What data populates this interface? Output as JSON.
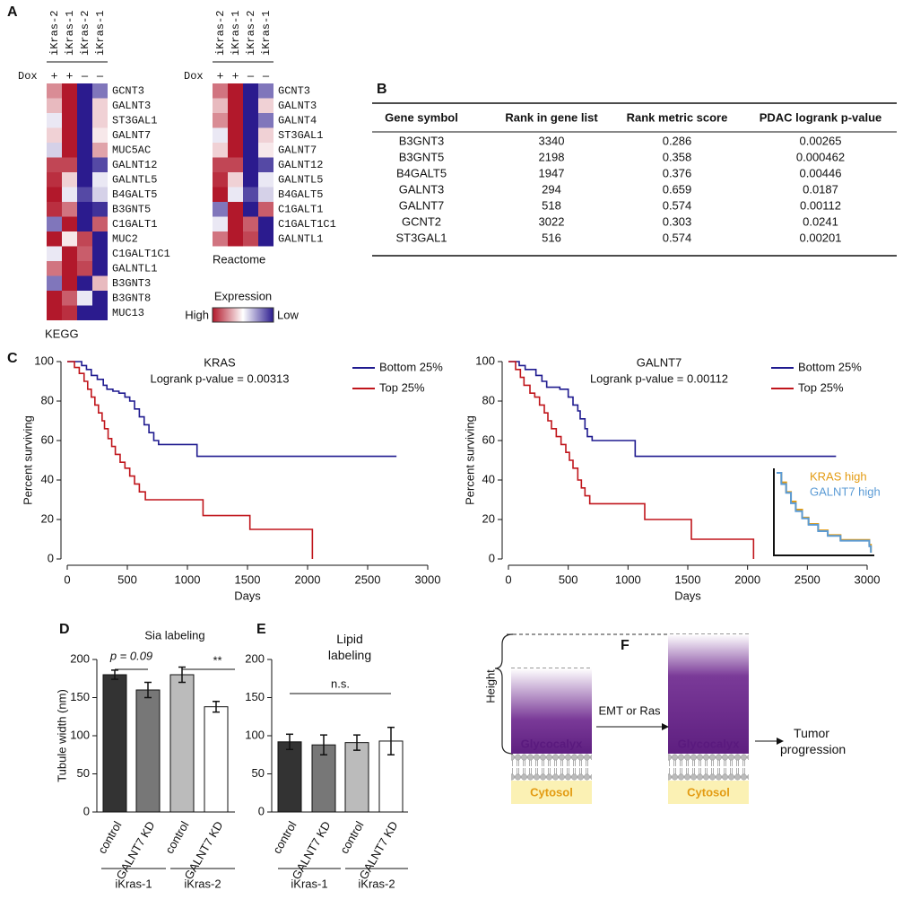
{
  "panel_labels": [
    "A",
    "B",
    "C",
    "D",
    "E",
    "F"
  ],
  "heatmap": {
    "conditions": [
      "iKras-2",
      "iKras-1",
      "iKras-2",
      "iKras-1"
    ],
    "dox_label": "Dox",
    "dox": [
      "+",
      "+",
      "–",
      "–"
    ],
    "range": [
      -1,
      1
    ],
    "colors": {
      "high": "#b2182b",
      "mid": "#ffffff",
      "low": "#2b1b8e"
    },
    "legend": {
      "title": "Expression",
      "high": "High",
      "low": "Low"
    },
    "maps": [
      {
        "name": "KEGG",
        "genes": [
          "GCNT3",
          "GALNT3",
          "ST3GAL1",
          "GALNT7",
          "MUC5AC",
          "GALNT12",
          "GALNTL5",
          "B4GALT5",
          "B3GNT5",
          "C1GALT1",
          "MUC2",
          "C1GALT1C1",
          "GALNTL1",
          "B3GNT3",
          "B3GNT8",
          "MUC13"
        ],
        "values": [
          [
            0.5,
            1,
            -1,
            -0.6
          ],
          [
            0.3,
            1,
            -1,
            0.2
          ],
          [
            -0.1,
            1,
            -1,
            0.2
          ],
          [
            0.2,
            1,
            -1,
            0.1
          ],
          [
            -0.2,
            1,
            -1,
            0.4
          ],
          [
            0.8,
            0.8,
            -1,
            -0.8
          ],
          [
            0.9,
            0.2,
            -1,
            -0.1
          ],
          [
            1,
            -0.1,
            -0.8,
            -0.2
          ],
          [
            0.9,
            0.6,
            -1,
            -0.9
          ],
          [
            -0.6,
            1,
            -1,
            0.7
          ],
          [
            1,
            0.1,
            0.8,
            -1
          ],
          [
            -0.1,
            1,
            0.7,
            -1
          ],
          [
            0.6,
            1,
            0.8,
            -1
          ],
          [
            -0.6,
            1,
            -1,
            0.3
          ],
          [
            1,
            0.7,
            -0.1,
            -1
          ],
          [
            1,
            0.9,
            -1,
            -1
          ]
        ]
      },
      {
        "name": "Reactome",
        "genes": [
          "GCNT3",
          "GALNT3",
          "GALNT4",
          "ST3GAL1",
          "GALNT7",
          "GALNT12",
          "GALNTL5",
          "B4GALT5",
          "C1GALT1",
          "C1GALT1C1",
          "GALNTL1"
        ],
        "values": [
          [
            0.6,
            1,
            -1,
            -0.6
          ],
          [
            0.3,
            1,
            -1,
            0.2
          ],
          [
            0.5,
            1,
            -1,
            -0.6
          ],
          [
            -0.1,
            1,
            -1,
            0.2
          ],
          [
            0.2,
            1,
            -1,
            0.1
          ],
          [
            0.8,
            0.8,
            -1,
            -0.8
          ],
          [
            0.9,
            0.2,
            -1,
            -0.1
          ],
          [
            1,
            -0.1,
            -0.8,
            -0.2
          ],
          [
            -0.6,
            1,
            -1,
            0.7
          ],
          [
            -0.1,
            1,
            0.7,
            -1
          ],
          [
            0.6,
            1,
            0.8,
            -1
          ]
        ]
      }
    ]
  },
  "table": {
    "columns": [
      "Gene symbol",
      "Rank in gene list",
      "Rank metric score",
      "PDAC logrank p-value"
    ],
    "rows": [
      [
        "B3GNT3",
        3340,
        0.286,
        0.00265
      ],
      [
        "B3GNT5",
        2198,
        0.358,
        0.000462
      ],
      [
        "B4GALT5",
        1947,
        0.376,
        0.00446
      ],
      [
        "GALNT3",
        294,
        0.659,
        0.0187
      ],
      [
        "GALNT7",
        518,
        0.574,
        0.00112
      ],
      [
        "GCNT2",
        3022,
        0.303,
        0.0241
      ],
      [
        "ST3GAL1",
        516,
        0.574,
        0.00201
      ]
    ]
  },
  "chart_data": [
    {
      "type": "step",
      "title": "KRAS",
      "subtitle": "Logrank p-value = 0.00313",
      "x_label": "Days",
      "y_label": "Percent surviving",
      "xlim": [
        0,
        3000
      ],
      "xticks": [
        0,
        500,
        1000,
        1500,
        2000,
        2500,
        3000
      ],
      "ylim": [
        0,
        100
      ],
      "yticks": [
        0,
        20,
        40,
        60,
        80,
        100
      ],
      "legend": "upper right",
      "series": [
        {
          "name": "Bottom 25%",
          "color": "#1f1a8f",
          "x": [
            0,
            120,
            160,
            200,
            250,
            300,
            330,
            380,
            430,
            480,
            520,
            560,
            600,
            640,
            680,
            720,
            760,
            1080,
            2740
          ],
          "values": [
            100,
            98,
            96,
            93,
            91,
            88,
            86,
            85,
            84,
            82,
            80,
            76,
            72,
            68,
            64,
            60,
            58,
            52,
            52
          ]
        },
        {
          "name": "Top 25%",
          "color": "#c0151b",
          "x": [
            0,
            60,
            100,
            140,
            170,
            200,
            230,
            260,
            290,
            310,
            340,
            370,
            400,
            440,
            480,
            520,
            560,
            600,
            650,
            1130,
            1520,
            2030,
            2040
          ],
          "values": [
            100,
            97,
            94,
            90,
            86,
            82,
            78,
            74,
            70,
            66,
            61,
            57,
            53,
            49,
            46,
            42,
            38,
            34,
            30,
            22,
            15,
            15,
            0
          ]
        }
      ]
    },
    {
      "type": "step",
      "title": "GALNT7",
      "subtitle": "Logrank p-value = 0.00112",
      "x_label": "Days",
      "y_label": "Percent surviving",
      "xlim": [
        0,
        3000
      ],
      "xticks": [
        0,
        500,
        1000,
        1500,
        2000,
        2500,
        3000
      ],
      "ylim": [
        0,
        100
      ],
      "yticks": [
        0,
        20,
        40,
        60,
        80,
        100
      ],
      "legend": "upper right",
      "series": [
        {
          "name": "Bottom 25%",
          "color": "#1f1a8f",
          "x": [
            0,
            90,
            140,
            230,
            280,
            320,
            430,
            500,
            540,
            580,
            600,
            640,
            660,
            700,
            1060,
            2740
          ],
          "values": [
            100,
            98,
            96,
            93,
            90,
            87,
            86,
            82,
            78,
            75,
            71,
            66,
            62,
            60,
            52,
            52
          ]
        },
        {
          "name": "Top 25%",
          "color": "#c0151b",
          "x": [
            0,
            60,
            100,
            130,
            180,
            220,
            260,
            300,
            330,
            360,
            400,
            440,
            480,
            510,
            540,
            580,
            610,
            640,
            680,
            1140,
            1530,
            2040,
            2050
          ],
          "values": [
            100,
            96,
            92,
            88,
            84,
            82,
            78,
            74,
            70,
            66,
            62,
            58,
            54,
            50,
            46,
            40,
            36,
            32,
            28,
            20,
            10,
            10,
            0
          ]
        }
      ]
    },
    {
      "type": "step",
      "xlim": [
        0,
        3000
      ],
      "ylim": [
        0,
        100
      ],
      "legend": "upper right",
      "series": [
        {
          "name": "KRAS high",
          "color": "#e39b12",
          "x": [
            0,
            150,
            300,
            450,
            600,
            800,
            1000,
            1300,
            1600,
            2000,
            2900,
            2950
          ],
          "values": [
            100,
            88,
            76,
            64,
            54,
            44,
            36,
            28,
            22,
            16,
            10,
            0
          ]
        },
        {
          "name": "GALNT7 high",
          "color": "#5b9bd5",
          "x": [
            0,
            150,
            300,
            450,
            600,
            800,
            1000,
            1300,
            1600,
            2000,
            2900,
            2950
          ],
          "values": [
            100,
            86,
            75,
            62,
            52,
            43,
            35,
            27,
            21,
            15,
            8,
            0
          ]
        }
      ]
    },
    {
      "type": "bar",
      "title": "Sia labeling",
      "y_label": "Tubule width (nm)",
      "categories": [
        "control",
        "GALNT7 KD",
        "control",
        "GALNT7 KD"
      ],
      "groups": [
        "iKras-1",
        "iKras-2"
      ],
      "values": [
        180,
        160,
        180,
        138
      ],
      "errors": [
        6,
        10,
        10,
        7
      ],
      "colors": [
        "#333333",
        "#777777",
        "#bbbbbb",
        "#ffffff"
      ],
      "ylim": [
        0,
        200
      ],
      "yticks": [
        0,
        50,
        100,
        150,
        200
      ],
      "annotations": [
        "p = 0.09",
        "**"
      ]
    },
    {
      "type": "bar",
      "title": "Lipid labeling",
      "categories": [
        "control",
        "GALNT7 KD",
        "control",
        "GALNT7 KD"
      ],
      "groups": [
        "iKras-1",
        "iKras-2"
      ],
      "values": [
        92,
        88,
        91,
        93
      ],
      "errors": [
        10,
        13,
        10,
        18
      ],
      "colors": [
        "#333333",
        "#777777",
        "#bbbbbb",
        "#ffffff"
      ],
      "ylim": [
        0,
        200
      ],
      "yticks": [
        0,
        50,
        100,
        150,
        200
      ],
      "annotations": [
        "n.s."
      ]
    }
  ],
  "diagram": {
    "height_label": "Height",
    "glycocalyx": [
      "Glycocalyx",
      "Glycocalyx"
    ],
    "arrow_label": "EMT or Ras",
    "outcome": "Tumor progression",
    "cytosol": [
      "Cytosol",
      "Cytosol"
    ]
  }
}
